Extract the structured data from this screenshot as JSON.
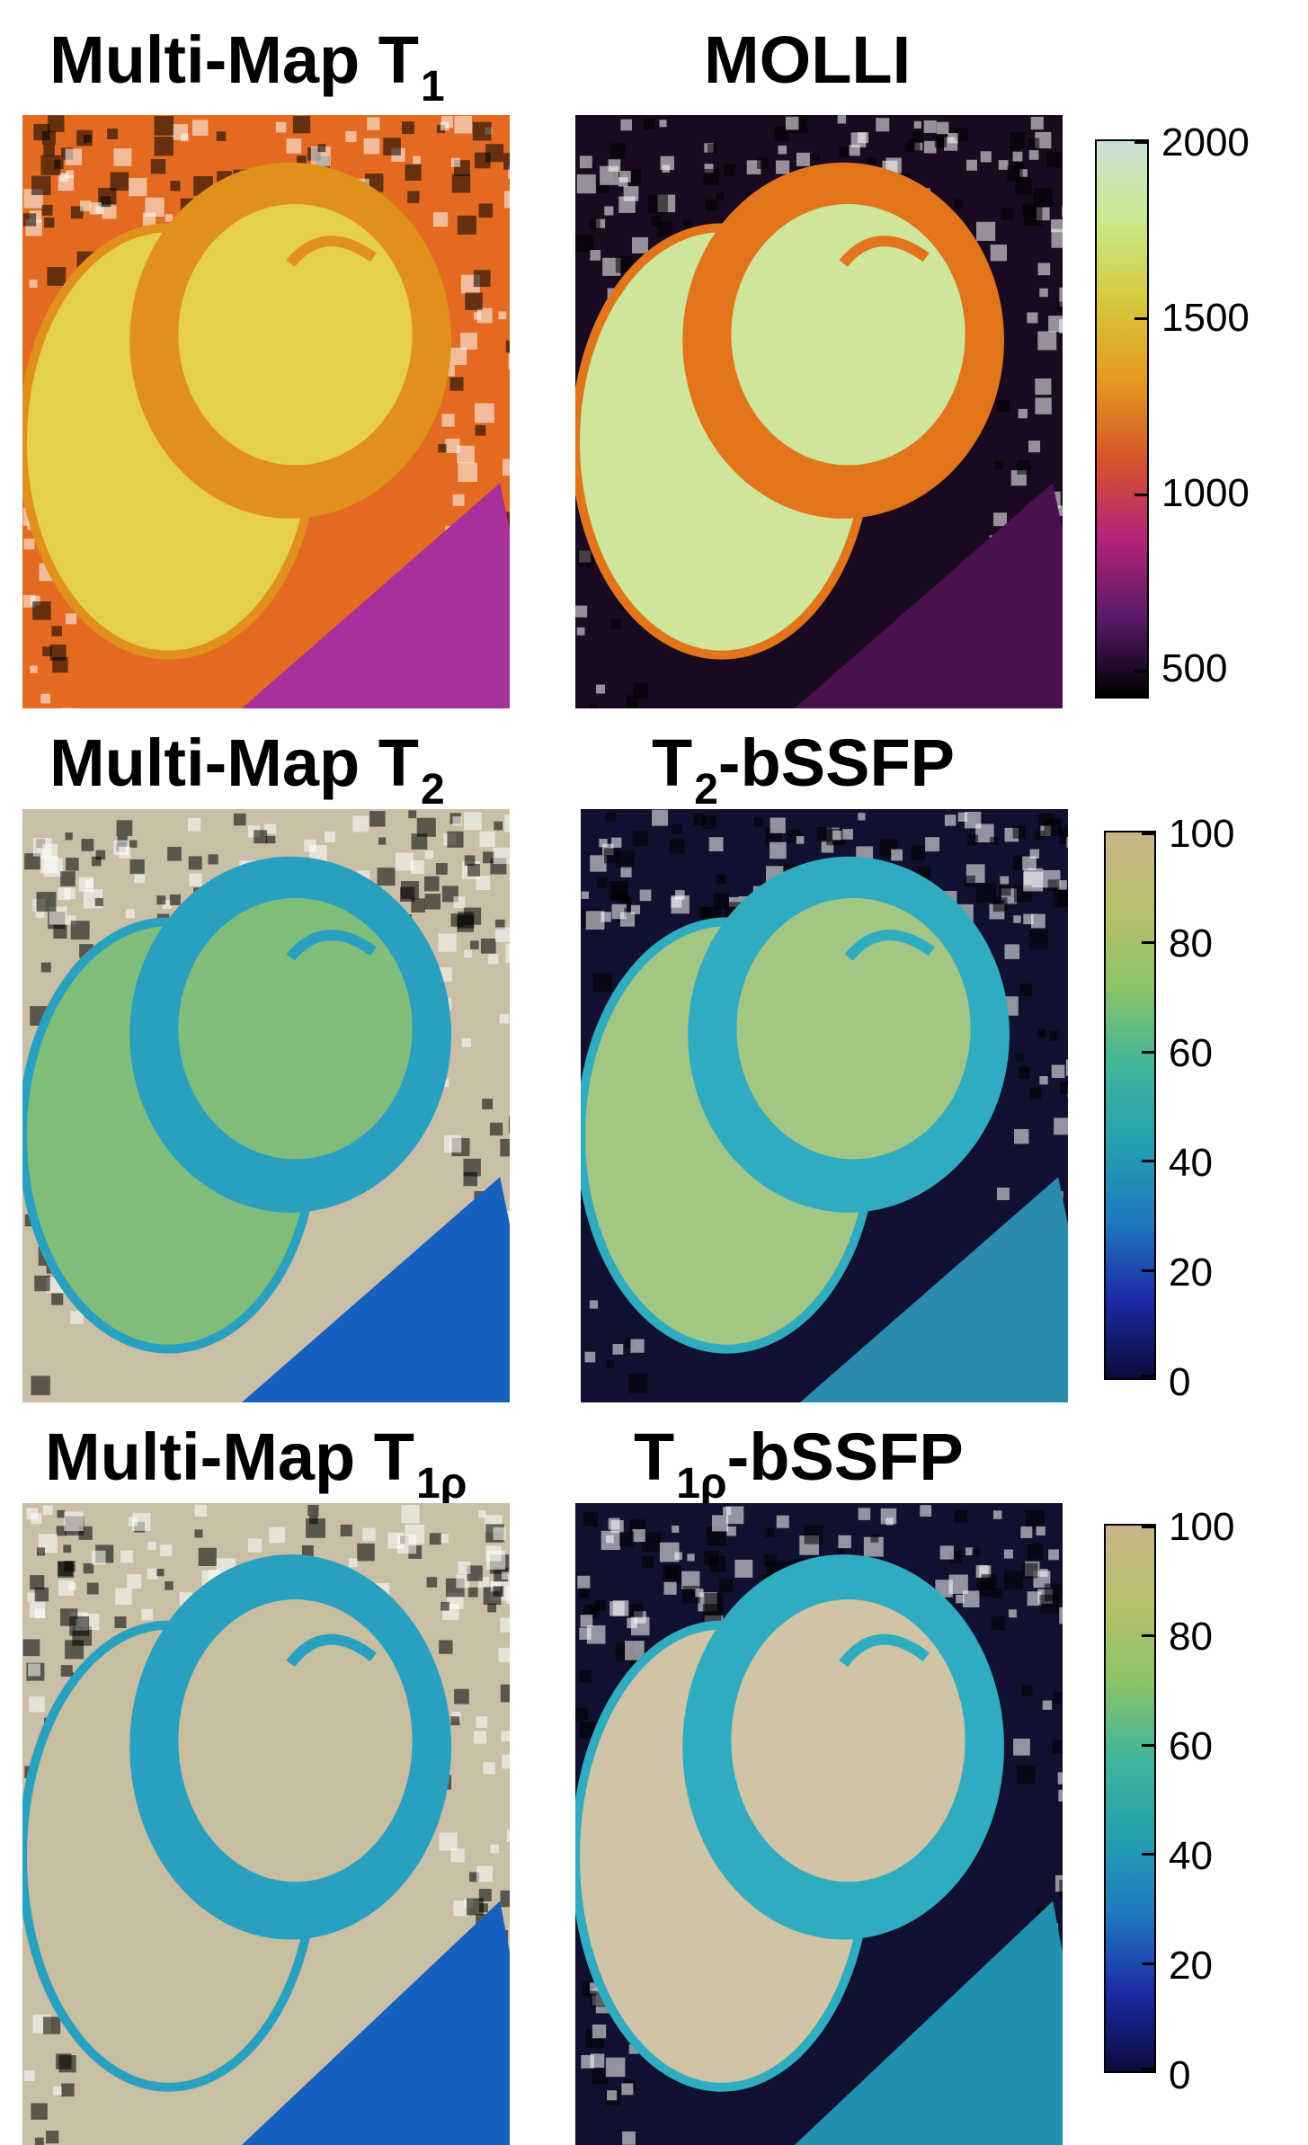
{
  "rows": [
    {
      "left_title": {
        "text": "Multi-Map T",
        "sub": "1"
      },
      "right_title": {
        "pre": "",
        "text": "MOLLI",
        "sub": "",
        "post": ""
      },
      "colorbar": {
        "ticks": [
          "2000",
          "1500",
          "1000",
          "500"
        ],
        "scheme": "T1",
        "colors": [
          "#000000",
          "#5a1a6a",
          "#b5237a",
          "#d6552a",
          "#e49a1e",
          "#d6c93c",
          "#c8ea8c",
          "#cde0d6"
        ]
      },
      "left_map": {
        "bg": "#e36a20",
        "blood": "#e6cf4a",
        "myo": "#e2901c",
        "lung": "#a8309a"
      },
      "right_map": {
        "bg": "#1a0a20",
        "blood": "#cfe59a",
        "myo": "#e2751c",
        "lung": "#4a1050"
      }
    },
    {
      "left_title": {
        "text": "Multi-Map T",
        "sub": "2"
      },
      "right_title": {
        "pre": "T",
        "presub": "2",
        "text": "-bSSFP"
      },
      "colorbar": {
        "ticks": [
          "100",
          "80",
          "60",
          "40",
          "20",
          "0"
        ],
        "scheme": "T2",
        "colors": [
          "#0b0b3a",
          "#1c2aa5",
          "#1f78c0",
          "#24a0b0",
          "#3fb59a",
          "#8ac466",
          "#b9c06a",
          "#c7b48a"
        ]
      },
      "left_map": {
        "bg": "#c9bea6",
        "blood": "#7fbe7a",
        "myo": "#2aa0c0",
        "lung": "#1660c0"
      },
      "right_map": {
        "bg": "#101030",
        "blood": "#a4c684",
        "myo": "#30acc0",
        "lung": "#2a8ab0"
      }
    },
    {
      "left_title": {
        "text": "Multi-Map T",
        "sub": "1ρ"
      },
      "right_title": {
        "pre": "T",
        "presub": "1ρ",
        "text": "-bSSFP"
      },
      "colorbar": {
        "ticks": [
          "100",
          "80",
          "60",
          "40",
          "20",
          "0"
        ],
        "scheme": "T2",
        "colors": [
          "#0b0b3a",
          "#1c2aa5",
          "#1f78c0",
          "#24a0b0",
          "#3fb59a",
          "#8ac466",
          "#b9c06a",
          "#c7b48a"
        ]
      },
      "left_map": {
        "bg": "#c9bea6",
        "blood": "#c7bea0",
        "myo": "#2aa0c0",
        "lung": "#1660c0"
      },
      "right_map": {
        "bg": "#101030",
        "blood": "#cfc4a4",
        "myo": "#30acc0",
        "lung": "#1f90b0"
      }
    }
  ]
}
